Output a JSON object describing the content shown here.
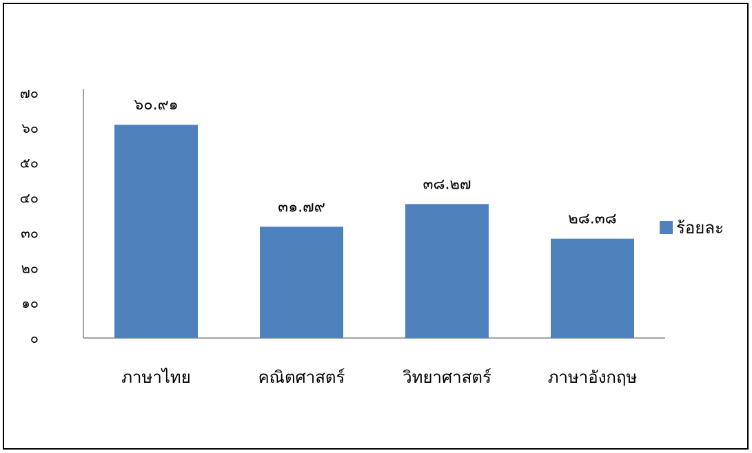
{
  "chart_data": {
    "type": "bar",
    "categories": [
      "ภาษาไทย",
      "คณิตศาสตร์",
      "วิทยาศาสตร์",
      "ภาษาอังกฤษ"
    ],
    "series": [
      {
        "name": "ร้อยละ",
        "values": [
          60.91,
          31.79,
          38.27,
          28.38
        ],
        "value_labels": [
          "๖๐.๙๑",
          "๓๑.๗๙",
          "๓๘.๒๗",
          "๒๘.๓๘"
        ],
        "color": "#4F81BD"
      }
    ],
    "ylim": [
      0,
      70
    ],
    "y_ticks": [
      0,
      10,
      20,
      30,
      40,
      50,
      60,
      70
    ],
    "y_tick_labels": [
      "๐",
      "๑๐",
      "๒๐",
      "๓๐",
      "๔๐",
      "๕๐",
      "๖๐",
      "๗๐"
    ],
    "grid": false,
    "legend": "right",
    "title": "",
    "xlabel": "",
    "ylabel": ""
  }
}
